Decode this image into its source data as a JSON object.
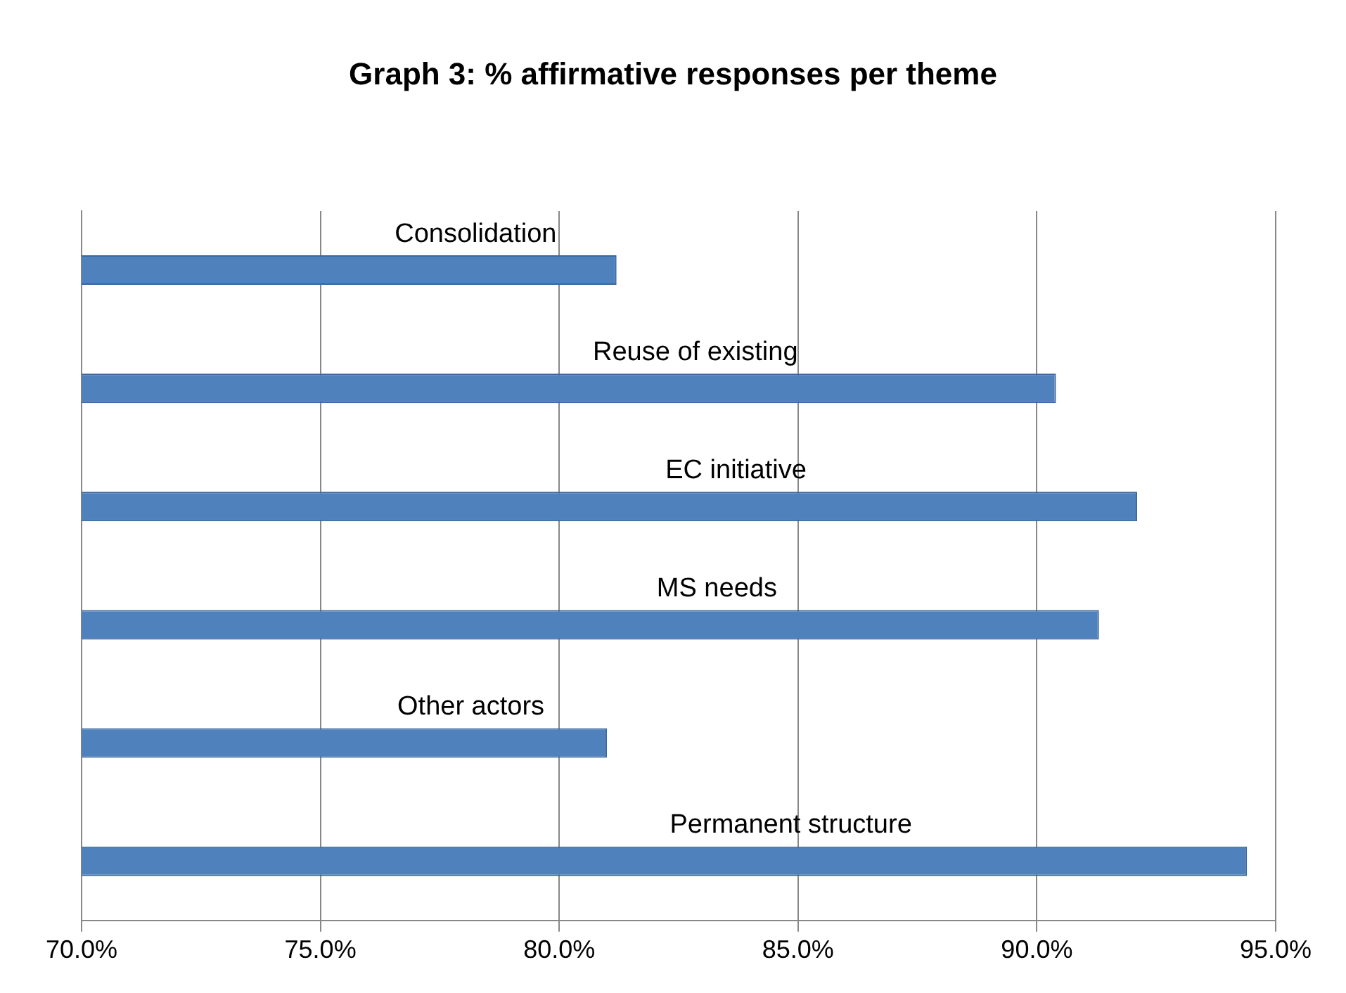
{
  "chart_data": {
    "type": "bar",
    "orientation": "horizontal",
    "title": "Graph 3: % affirmative responses per theme",
    "categories": [
      "Consolidation",
      "Reuse of existing",
      "EC initiative",
      "MS needs",
      "Other actors",
      "Permanent structure"
    ],
    "values": [
      81.2,
      90.4,
      92.1,
      91.3,
      81.0,
      94.4
    ],
    "color": "#4f81bd",
    "xlim": [
      70,
      95
    ],
    "xticks": [
      {
        "value": 70,
        "label": "70.0%"
      },
      {
        "value": 75,
        "label": "75.0%"
      },
      {
        "value": 80,
        "label": "80.0%"
      },
      {
        "value": 85,
        "label": "85.0%"
      },
      {
        "value": 90,
        "label": "90.0%"
      },
      {
        "value": 95,
        "label": "95.0%"
      }
    ],
    "grid": "x",
    "legend": false
  }
}
